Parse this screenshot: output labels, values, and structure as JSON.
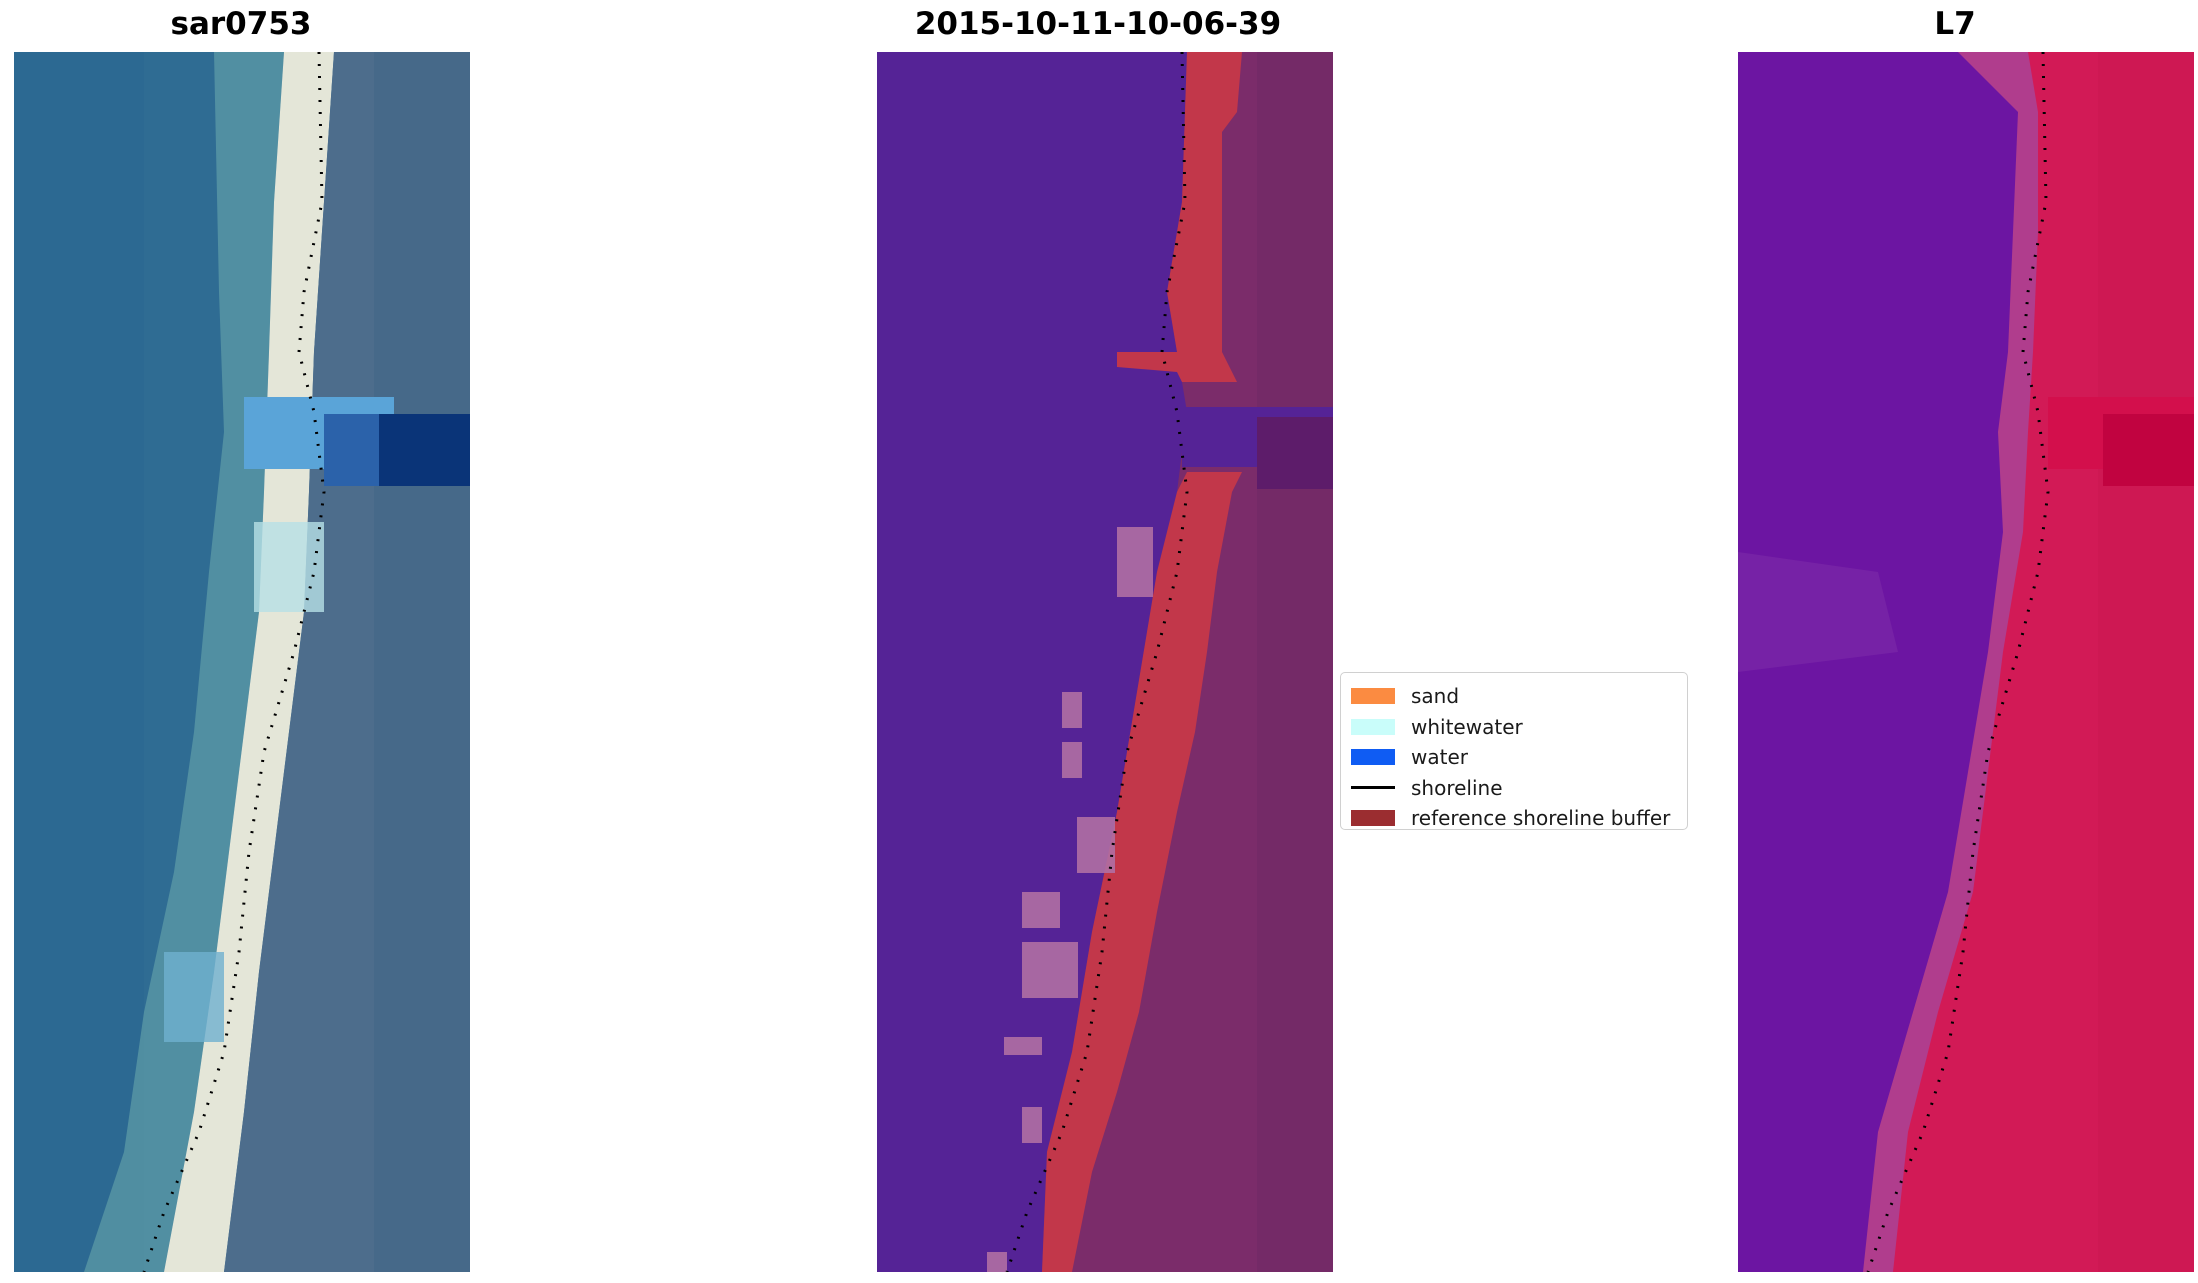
{
  "panels": [
    {
      "title": "sar0753"
    },
    {
      "title": "2015-10-11-10-06-39"
    },
    {
      "title": "L7"
    }
  ],
  "legend": {
    "items": [
      {
        "label": "sand",
        "type": "patch",
        "color": "#fb8b41"
      },
      {
        "label": "whitewater",
        "type": "patch",
        "color": "#c9fdfa"
      },
      {
        "label": "water",
        "type": "patch",
        "color": "#0f5cf3"
      },
      {
        "label": "shoreline",
        "type": "line",
        "color": "#000000"
      },
      {
        "label": "reference shoreline buffer",
        "type": "patch",
        "color": "#9b2d30"
      }
    ]
  },
  "colors": {
    "sar_water": "#2e6b93",
    "sar_sand": "#dfe3d7",
    "classified_water": "#552396",
    "classified_buffer": "#c2374a",
    "classified_land": "#7b2c6a",
    "l7_water": "#6b15a0",
    "l7_land": "#d21a56"
  }
}
